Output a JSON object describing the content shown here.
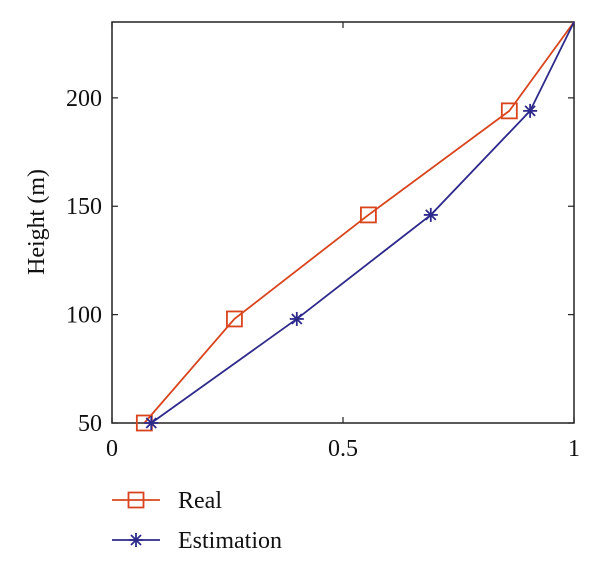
{
  "chart_data": {
    "type": "line",
    "xlabel": "",
    "ylabel": "Height (m)",
    "xlim": [
      0,
      1
    ],
    "ylim": [
      50,
      235
    ],
    "xticks": [
      0,
      0.5,
      1
    ],
    "xtick_labels": [
      "0",
      "0.5",
      "1"
    ],
    "yticks": [
      50,
      100,
      150,
      200
    ],
    "ytick_labels": [
      "50",
      "100",
      "150",
      "200"
    ],
    "grid": false,
    "legend_position": "bottom-left, below plot",
    "series": [
      {
        "name": "Real",
        "color": "#d9441c",
        "marker": "square",
        "x": [
          0.07,
          0.265,
          0.555,
          0.86,
          1.0
        ],
        "y": [
          50,
          98,
          146,
          194,
          235
        ]
      },
      {
        "name": "Estimation",
        "color": "#2e2a8c",
        "marker": "asterisk",
        "x": [
          0.085,
          0.4,
          0.69,
          0.905,
          1.0
        ],
        "y": [
          50,
          98,
          146,
          194,
          235
        ]
      }
    ]
  }
}
